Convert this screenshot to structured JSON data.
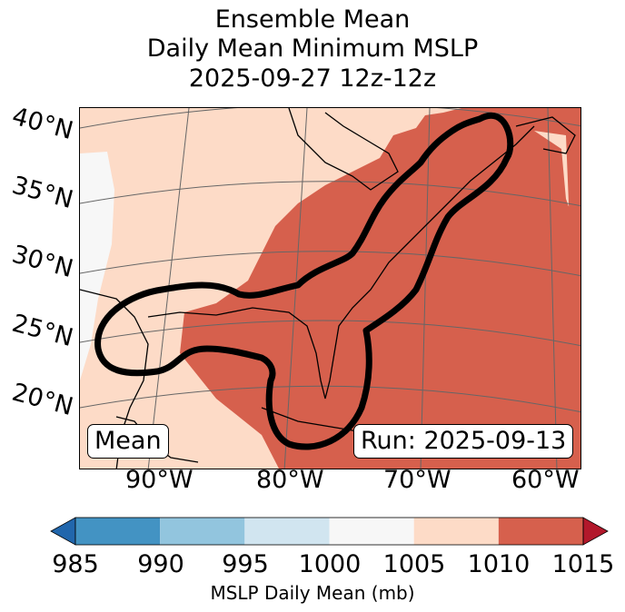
{
  "title": {
    "line1": "Ensemble Mean",
    "line2": "Daily Mean Minimum MSLP",
    "line3": "2025-09-27 12z-12z"
  },
  "map": {
    "lat_labels": [
      "40°N",
      "35°N",
      "30°N",
      "25°N",
      "20°N"
    ],
    "lon_labels": [
      "90°W",
      "80°W",
      "70°W",
      "60°W"
    ],
    "mean_box": "Mean",
    "run_box": "Run: 2025-09-13",
    "colors": {
      "land": "#fddbc7",
      "high_pressure": "#d6604d",
      "neutral": "#f7f7f7",
      "contour": "#000000"
    }
  },
  "colorbar": {
    "ticks": [
      "985",
      "990",
      "995",
      "1000",
      "1005",
      "1010",
      "1015"
    ],
    "label": "MSLP Daily Mean (mb)",
    "colors": [
      "#2166ac",
      "#4393c3",
      "#92c5de",
      "#d1e5f0",
      "#f7f7f7",
      "#fddbc7",
      "#d6604d",
      "#b2182b"
    ]
  }
}
